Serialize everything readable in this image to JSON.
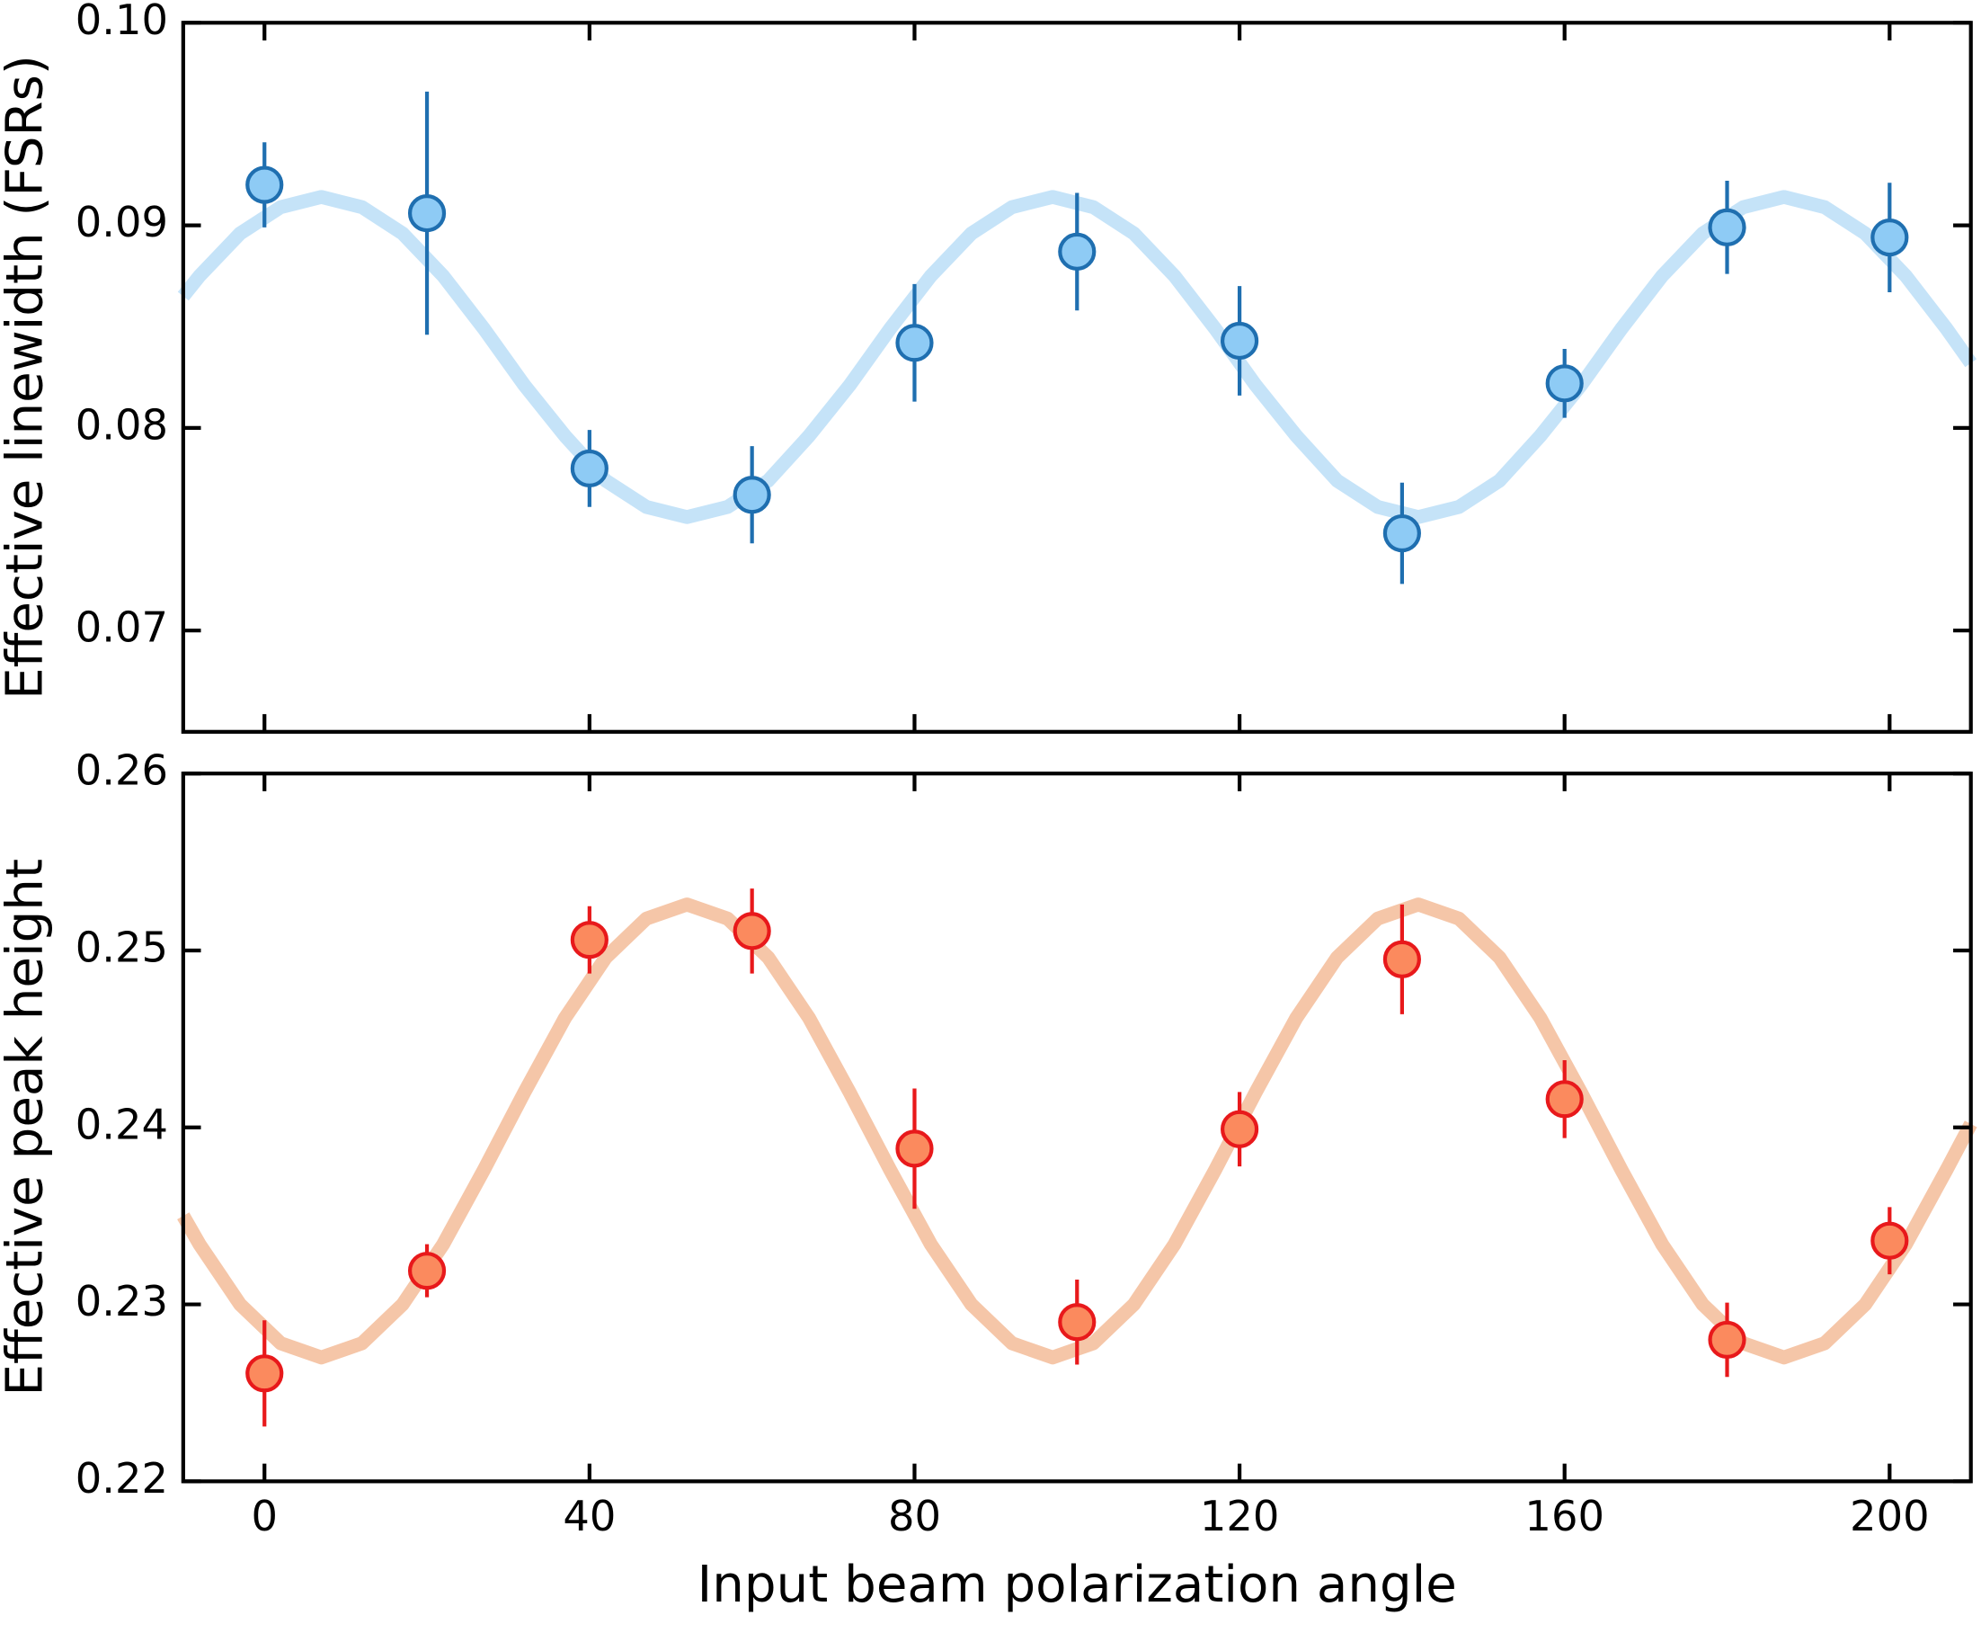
{
  "chart_data": [
    {
      "type": "scatter",
      "y_label": "Effective linewidth (FSRs)",
      "xlim": [
        -10,
        210
      ],
      "xticks": [
        0,
        40,
        80,
        120,
        160,
        200
      ],
      "ylim": [
        0.065,
        0.1
      ],
      "yticks": [
        0.07,
        0.08,
        0.09,
        {
          "value": 0.1,
          "label": "0.10"
        }
      ],
      "grid": false,
      "show_xtick_labels": false,
      "fit": {
        "color": "#c5e3f8",
        "x": [
          -10,
          -8,
          -3,
          2,
          7,
          12,
          17,
          22,
          27,
          32,
          37,
          42,
          47,
          52,
          57,
          62,
          67,
          72,
          77,
          82,
          87,
          92,
          97,
          102,
          107,
          112,
          117,
          122,
          127,
          132,
          137,
          142,
          147,
          152,
          157,
          162,
          167,
          172,
          177,
          182,
          187,
          192,
          197,
          202,
          207,
          210
        ],
        "values": [
          0.0865,
          0.0875,
          0.0896,
          0.0909,
          0.0914,
          0.0909,
          0.0896,
          0.0875,
          0.0849,
          0.0821,
          0.0796,
          0.0774,
          0.0761,
          0.0756,
          0.0761,
          0.0774,
          0.0796,
          0.0821,
          0.0849,
          0.0875,
          0.0896,
          0.0909,
          0.0914,
          0.0909,
          0.0896,
          0.0875,
          0.0849,
          0.0821,
          0.0796,
          0.0774,
          0.0761,
          0.0756,
          0.0761,
          0.0774,
          0.0796,
          0.0821,
          0.0849,
          0.0875,
          0.0896,
          0.0909,
          0.0914,
          0.0909,
          0.0896,
          0.0875,
          0.0849,
          0.0832
        ]
      },
      "points": {
        "color": "#8ecbf5",
        "edgecolor": "#1f6fb0",
        "x": [
          0,
          20,
          40,
          60,
          80,
          100,
          120,
          140,
          160,
          180,
          200
        ],
        "values": [
          0.092,
          0.0906,
          0.078,
          0.0767,
          0.0842,
          0.0887,
          0.0843,
          0.0748,
          0.0822,
          0.0899,
          0.0894
        ],
        "errors": [
          0.0021,
          0.006,
          0.0019,
          0.0024,
          0.0029,
          0.0029,
          0.0027,
          0.0025,
          0.0017,
          0.0023,
          0.0027
        ]
      }
    },
    {
      "type": "scatter",
      "y_label": "Effective peak height",
      "x_label": "Input beam polarization angle",
      "xlim": [
        -10,
        210
      ],
      "xticks": [
        0,
        40,
        80,
        120,
        160,
        200
      ],
      "ylim": [
        0.22,
        0.26
      ],
      "yticks": [
        0.22,
        0.23,
        0.24,
        0.25,
        0.26
      ],
      "grid": false,
      "show_xtick_labels": true,
      "fit": {
        "color": "#f5c6a8",
        "x": [
          -10,
          -8,
          -3,
          2,
          7,
          12,
          17,
          22,
          27,
          32,
          37,
          42,
          47,
          52,
          57,
          62,
          67,
          72,
          77,
          82,
          87,
          92,
          97,
          102,
          107,
          112,
          117,
          122,
          127,
          132,
          137,
          142,
          147,
          152,
          157,
          162,
          167,
          172,
          177,
          182,
          187,
          192,
          197,
          202,
          207,
          210
        ],
        "values": [
          0.235,
          0.2334,
          0.23,
          0.2278,
          0.227,
          0.2278,
          0.23,
          0.2334,
          0.2376,
          0.242,
          0.2462,
          0.2496,
          0.2518,
          0.2526,
          0.2518,
          0.2496,
          0.2462,
          0.242,
          0.2376,
          0.2334,
          0.23,
          0.2278,
          0.227,
          0.2278,
          0.23,
          0.2334,
          0.2376,
          0.242,
          0.2462,
          0.2496,
          0.2518,
          0.2526,
          0.2518,
          0.2496,
          0.2462,
          0.242,
          0.2376,
          0.2334,
          0.23,
          0.2278,
          0.227,
          0.2278,
          0.23,
          0.2334,
          0.2376,
          0.2402
        ]
      },
      "points": {
        "color": "#fb8a5e",
        "edgecolor": "#e8191b",
        "x": [
          0,
          20,
          40,
          60,
          80,
          100,
          120,
          140,
          160,
          180,
          200
        ],
        "values": [
          0.2261,
          0.2319,
          0.2506,
          0.2511,
          0.2388,
          0.229,
          0.2399,
          0.2495,
          0.2416,
          0.228,
          0.2336
        ],
        "errors": [
          0.003,
          0.0015,
          0.0019,
          0.0024,
          0.0034,
          0.0024,
          0.0021,
          0.0031,
          0.0022,
          0.0021,
          0.0019
        ]
      }
    }
  ]
}
